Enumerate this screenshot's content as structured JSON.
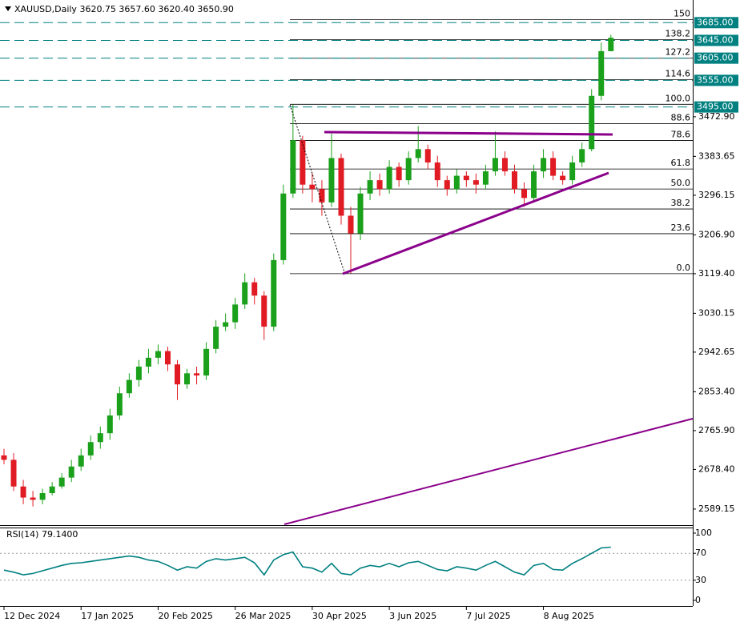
{
  "chart_data": [
    {
      "type": "candlestick",
      "title": "XAUUSD,Daily  3620.75 3657.60 3620.40 3650.90",
      "open": [
        2710,
        2700,
        2640,
        2615,
        2610,
        2625,
        2640,
        2660,
        2685,
        2710,
        2740,
        2760,
        2800,
        2850,
        2880,
        2910,
        2930,
        2945,
        2915,
        2870,
        2895,
        2890,
        2950,
        3000,
        3010,
        3050,
        3100,
        3070,
        3000,
        3150,
        3300,
        3420,
        3320,
        3310,
        3280,
        3380,
        3250,
        3210,
        3300,
        3330,
        3310,
        3360,
        3330,
        3380,
        3400,
        3370,
        3330,
        3310,
        3340,
        3330,
        3320,
        3350,
        3380,
        3350,
        3310,
        3290,
        3350,
        3380,
        3340,
        3330,
        3370,
        3400,
        3520,
        3620.75
      ],
      "high": [
        2725,
        2715,
        2655,
        2630,
        2635,
        2650,
        2670,
        2700,
        2725,
        2755,
        2775,
        2815,
        2865,
        2895,
        2925,
        2950,
        2960,
        2955,
        2925,
        2905,
        2910,
        2965,
        3015,
        3030,
        3065,
        3120,
        3110,
        3080,
        3165,
        3320,
        3500,
        3430,
        3345,
        3330,
        3435,
        3390,
        3270,
        3315,
        3350,
        3345,
        3375,
        3370,
        3395,
        3452,
        3410,
        3385,
        3340,
        3355,
        3350,
        3345,
        3365,
        3440,
        3395,
        3365,
        3325,
        3365,
        3400,
        3395,
        3350,
        3385,
        3415,
        3535,
        3640,
        3657.6
      ],
      "low": [
        2690,
        2630,
        2600,
        2595,
        2600,
        2620,
        2635,
        2650,
        2675,
        2700,
        2725,
        2745,
        2790,
        2840,
        2865,
        2895,
        2915,
        2900,
        2835,
        2860,
        2870,
        2880,
        2940,
        2990,
        2995,
        3040,
        3050,
        2970,
        2990,
        3140,
        3290,
        3300,
        3280,
        3250,
        3270,
        3230,
        3120,
        3195,
        3285,
        3295,
        3300,
        3315,
        3320,
        3370,
        3355,
        3315,
        3295,
        3300,
        3315,
        3300,
        3310,
        3340,
        3340,
        3300,
        3270,
        3280,
        3335,
        3330,
        3320,
        3320,
        3360,
        3395,
        3510,
        3620.4
      ],
      "close": [
        2700,
        2640,
        2615,
        2610,
        2625,
        2640,
        2660,
        2685,
        2710,
        2740,
        2760,
        2800,
        2850,
        2880,
        2910,
        2930,
        2945,
        2915,
        2870,
        2895,
        2890,
        2950,
        3000,
        3010,
        3050,
        3100,
        3070,
        3000,
        3150,
        3300,
        3420,
        3320,
        3310,
        3280,
        3380,
        3250,
        3210,
        3300,
        3330,
        3310,
        3360,
        3330,
        3380,
        3400,
        3370,
        3330,
        3310,
        3340,
        3330,
        3320,
        3350,
        3380,
        3350,
        3310,
        3290,
        3350,
        3380,
        3340,
        3330,
        3370,
        3400,
        3520,
        3620.75,
        3650.9
      ],
      "up_color": "#1aa01a",
      "down_color": "#e01b24",
      "xlim": [
        0,
        71.5
      ],
      "xticks": [
        {
          "value": 0,
          "label": "12 Dec 2024"
        },
        {
          "value": 8,
          "label": "17 Jan 2025"
        },
        {
          "value": 16,
          "label": "20 Feb 2025"
        },
        {
          "value": 24,
          "label": "26 Mar 2025"
        },
        {
          "value": 32,
          "label": "30 Apr 2025"
        },
        {
          "value": 40,
          "label": "3 Jun 2025"
        },
        {
          "value": 48,
          "label": "7 Jul 2025"
        },
        {
          "value": 56,
          "label": "8 Aug 2025"
        }
      ],
      "ylim": [
        2554.7,
        3736
      ],
      "yticks": [
        {
          "value": 2589.15,
          "label": "2589.15"
        },
        {
          "value": 2678.4,
          "label": "2678.40"
        },
        {
          "value": 2765.9,
          "label": "2765.90"
        },
        {
          "value": 2853.4,
          "label": "2853.40"
        },
        {
          "value": 2942.65,
          "label": "2942.65"
        },
        {
          "value": 3030.15,
          "label": "3030.15"
        },
        {
          "value": 3119.4,
          "label": "3119.40"
        },
        {
          "value": 3206.9,
          "label": "3206.90"
        },
        {
          "value": 3296.15,
          "label": "3296.15"
        },
        {
          "value": 3383.65,
          "label": "3383.65"
        },
        {
          "value": 3472.9,
          "label": "3472.90"
        }
      ],
      "levels": [
        {
          "value": 3685,
          "label": "3685.00"
        },
        {
          "value": 3645,
          "label": "3645.00"
        },
        {
          "value": 3605,
          "label": "3605.00"
        },
        {
          "value": 3555,
          "label": "3555.00"
        },
        {
          "value": 3495,
          "label": "3495.00"
        }
      ],
      "level_color": "#008080",
      "fib_range": [
        3119.4,
        3501
      ],
      "fib_levels": [
        {
          "value": 0,
          "label": "0.0"
        },
        23.6,
        38.2,
        {
          "value": 50,
          "label": "50.0"
        },
        61.8,
        78.6,
        88.6,
        {
          "value": 100,
          "label": "100.0"
        },
        114.6,
        127.2,
        138.2,
        150
      ]
    },
    {
      "type": "line",
      "title": "RSI(14) 79.1400",
      "color": "#008080",
      "values": [
        45,
        42,
        38,
        40,
        44,
        48,
        52,
        55,
        56,
        58,
        60,
        62,
        64,
        66,
        64,
        60,
        58,
        52,
        45,
        50,
        48,
        58,
        62,
        60,
        62,
        64,
        56,
        38,
        60,
        68,
        72,
        50,
        48,
        42,
        55,
        40,
        38,
        48,
        52,
        50,
        55,
        50,
        56,
        58,
        52,
        46,
        44,
        50,
        48,
        45,
        52,
        58,
        50,
        42,
        38,
        52,
        55,
        46,
        45,
        55,
        62,
        70,
        78,
        79.14
      ],
      "ylim": [
        -8.3,
        109.5
      ],
      "yticks": [
        0,
        30,
        70,
        100
      ],
      "guide_levels": [
        30,
        70
      ]
    }
  ]
}
